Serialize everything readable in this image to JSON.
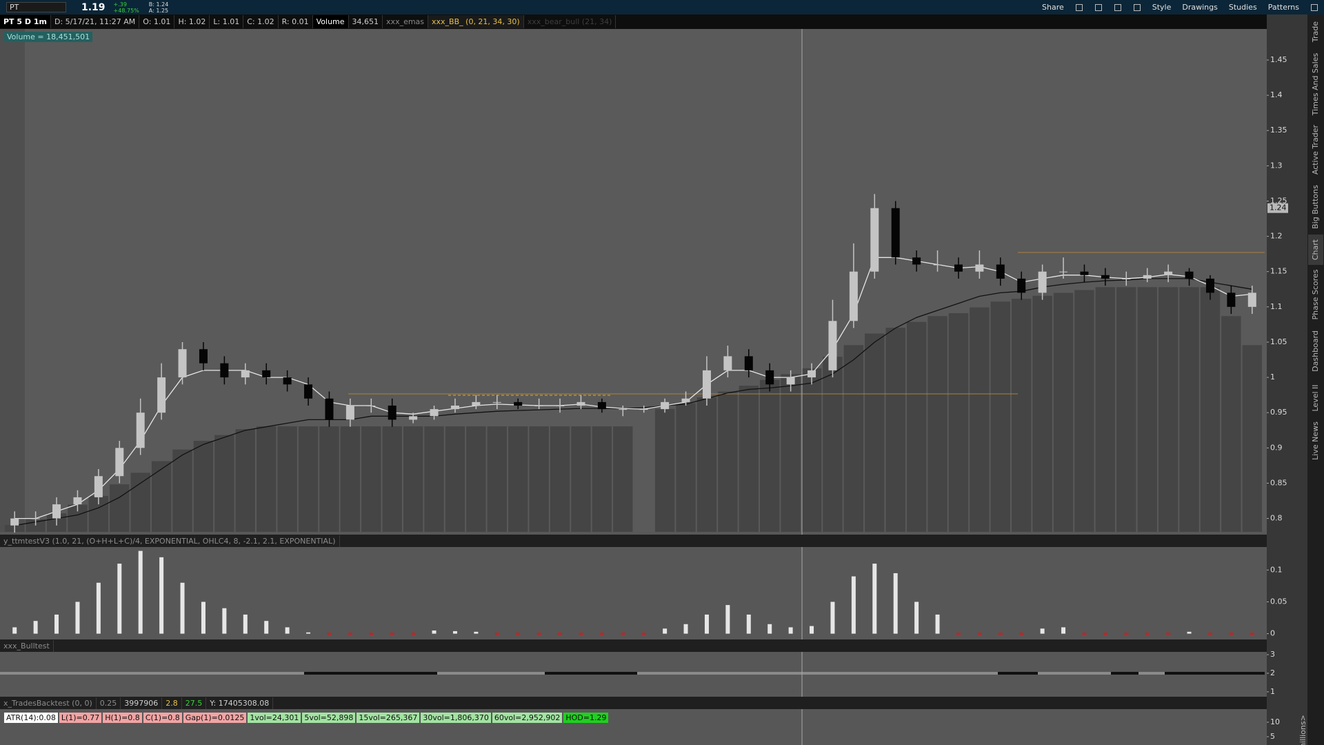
{
  "toolbar": {
    "symbol": "PT",
    "last": "1.19",
    "change": "+.39",
    "change_pct": "+48.75%",
    "bid": "B: 1.24",
    "ask": "A: 1.25",
    "buttons": [
      "Share",
      "Style",
      "Drawings",
      "Studies",
      "Patterns"
    ]
  },
  "header": {
    "chart_label": "PT 5 D 1m",
    "fields": [
      "D: 5/17/21, 11:27 AM",
      "O: 1.01",
      "H: 1.02",
      "L: 1.01",
      "C: 1.02",
      "R: 0.01"
    ],
    "volume_name": "Volume",
    "volume_value": "34,651",
    "studies": [
      "xxx_emas",
      "xxx_BB_ (0, 21, 34, 30)",
      "xxx_bear_bull (21, 34)"
    ],
    "volume_bubble": "Volume = 18,451,501"
  },
  "side_tabs": [
    "Trade",
    "Times And Sales",
    "Active Trader",
    "Big Buttons",
    "Chart",
    "Phase Scores",
    "Dashboard",
    "Level II",
    "Live News"
  ],
  "chart_data": {
    "type": "candlestick",
    "open": [
      0.79,
      0.8,
      0.8,
      0.82,
      0.83,
      0.86,
      0.9,
      0.95,
      1.0,
      1.04,
      1.02,
      1.0,
      1.01,
      1.0,
      0.99,
      0.97,
      0.94,
      0.96,
      0.96,
      0.94,
      0.945,
      0.955,
      0.96,
      0.965,
      0.965,
      0.96,
      0.96,
      0.96,
      0.965,
      0.955,
      0.955,
      0.955,
      0.965,
      0.97,
      1.01,
      1.03,
      1.01,
      0.99,
      1.0,
      1.01,
      1.08,
      1.15,
      1.24,
      1.17,
      1.16,
      1.16,
      1.15,
      1.16,
      1.14,
      1.12,
      1.15,
      1.15,
      1.145,
      1.14,
      1.14,
      1.145,
      1.15,
      1.14,
      1.12,
      1.1
    ],
    "high": [
      0.81,
      0.81,
      0.83,
      0.84,
      0.87,
      0.91,
      0.97,
      1.02,
      1.05,
      1.05,
      1.03,
      1.02,
      1.02,
      1.01,
      1.0,
      0.98,
      0.97,
      0.97,
      0.97,
      0.95,
      0.96,
      0.97,
      0.975,
      0.975,
      0.97,
      0.97,
      0.97,
      0.975,
      0.97,
      0.96,
      0.96,
      0.97,
      0.98,
      1.03,
      1.045,
      1.04,
      1.02,
      1.01,
      1.02,
      1.11,
      1.19,
      1.26,
      1.25,
      1.18,
      1.18,
      1.17,
      1.18,
      1.17,
      1.15,
      1.16,
      1.17,
      1.16,
      1.155,
      1.15,
      1.155,
      1.16,
      1.155,
      1.145,
      1.13,
      1.13
    ],
    "low": [
      0.78,
      0.79,
      0.79,
      0.81,
      0.82,
      0.85,
      0.89,
      0.94,
      0.99,
      1.01,
      0.99,
      0.99,
      0.99,
      0.98,
      0.96,
      0.93,
      0.93,
      0.95,
      0.93,
      0.935,
      0.94,
      0.95,
      0.955,
      0.955,
      0.955,
      0.955,
      0.95,
      0.955,
      0.95,
      0.945,
      0.95,
      0.95,
      0.96,
      0.96,
      1.0,
      1.0,
      0.98,
      0.98,
      0.99,
      1.0,
      1.07,
      1.14,
      1.16,
      1.15,
      1.15,
      1.14,
      1.14,
      1.13,
      1.11,
      1.11,
      1.14,
      1.135,
      1.13,
      1.13,
      1.135,
      1.135,
      1.13,
      1.11,
      1.09,
      1.09
    ],
    "close": [
      0.8,
      0.8,
      0.82,
      0.83,
      0.86,
      0.9,
      0.95,
      1.0,
      1.04,
      1.02,
      1.0,
      1.01,
      1.0,
      0.99,
      0.97,
      0.94,
      0.96,
      0.96,
      0.94,
      0.945,
      0.955,
      0.96,
      0.965,
      0.965,
      0.96,
      0.96,
      0.96,
      0.965,
      0.955,
      0.955,
      0.955,
      0.965,
      0.97,
      1.01,
      1.03,
      1.01,
      0.99,
      1.0,
      1.01,
      1.08,
      1.15,
      1.24,
      1.17,
      1.16,
      1.16,
      1.15,
      1.16,
      1.14,
      1.12,
      1.15,
      1.15,
      1.145,
      1.14,
      1.14,
      1.145,
      1.15,
      1.14,
      1.12,
      1.1,
      1.12
    ],
    "ema_fast": [
      0.8,
      0.8,
      0.81,
      0.82,
      0.84,
      0.87,
      0.91,
      0.96,
      1.0,
      1.01,
      1.01,
      1.01,
      1.0,
      1.0,
      0.99,
      0.965,
      0.96,
      0.96,
      0.95,
      0.948,
      0.952,
      0.956,
      0.96,
      0.962,
      0.961,
      0.96,
      0.96,
      0.962,
      0.958,
      0.956,
      0.955,
      0.96,
      0.965,
      0.99,
      1.01,
      1.01,
      1.0,
      1.0,
      1.005,
      1.04,
      1.09,
      1.17,
      1.17,
      1.165,
      1.16,
      1.155,
      1.157,
      1.15,
      1.135,
      1.14,
      1.145,
      1.145,
      1.142,
      1.14,
      1.142,
      1.146,
      1.143,
      1.13,
      1.115,
      1.118
    ],
    "ema_slow": [
      0.79,
      0.795,
      0.8,
      0.805,
      0.815,
      0.83,
      0.85,
      0.87,
      0.89,
      0.905,
      0.915,
      0.925,
      0.93,
      0.935,
      0.94,
      0.94,
      0.94,
      0.945,
      0.945,
      0.945,
      0.945,
      0.948,
      0.95,
      0.952,
      0.953,
      0.954,
      0.955,
      0.956,
      0.956,
      0.956,
      0.957,
      0.96,
      0.962,
      0.97,
      0.978,
      0.983,
      0.985,
      0.988,
      0.992,
      1.005,
      1.025,
      1.05,
      1.07,
      1.085,
      1.095,
      1.105,
      1.115,
      1.12,
      1.122,
      1.128,
      1.132,
      1.135,
      1.137,
      1.138,
      1.14,
      1.14,
      1.14,
      1.135,
      1.13,
      1.125
    ],
    "volume": [
      78,
      80,
      82,
      85,
      88,
      92,
      96,
      100,
      104,
      107,
      109,
      111,
      112,
      112,
      112,
      112,
      112,
      112,
      112,
      112,
      112,
      112,
      112,
      112,
      112,
      112,
      112,
      112,
      112,
      112,
      null,
      118,
      120,
      122,
      124,
      126,
      128,
      130,
      132,
      136,
      140,
      144,
      146,
      148,
      150,
      151,
      153,
      155,
      156,
      157,
      158,
      159,
      160,
      160,
      160,
      160,
      160,
      160,
      150,
      140
    ],
    "up_color": "#c4c4c4",
    "down_color": "#050505",
    "ema_fast_color": "#e6e6e6",
    "ema_slow_color": "#111111",
    "volume_color": "#454545",
    "ylim": [
      0.781,
      1.494
    ],
    "yticks": [
      0.8,
      0.85,
      0.9,
      0.95,
      1,
      1.05,
      1.1,
      1.15,
      1.2,
      1.25,
      1.3,
      1.35,
      1.4,
      1.45
    ],
    "last_price": 1.24,
    "volume_ylim": [
      0,
      249
    ],
    "volume_yticks": [
      10,
      5
    ],
    "volume_label": "millions>"
  },
  "studies": [
    {
      "type": "bar",
      "title": "y_ttmtestV3 (1.0, 21, (O+H+L+C)/4, EXPONENTIAL, OHLC4, 8, -2.1, 2.1, EXPONENTIAL)",
      "values": [
        0.01,
        0.02,
        0.03,
        0.05,
        0.08,
        0.11,
        0.13,
        0.12,
        0.08,
        0.05,
        0.04,
        0.03,
        0.02,
        0.01,
        0.002,
        0,
        0,
        0,
        0,
        0,
        0.005,
        0.004,
        0.003,
        0,
        0,
        0,
        0,
        0,
        0,
        0,
        0,
        0.008,
        0.015,
        0.03,
        0.045,
        0.03,
        0.015,
        0.01,
        0.012,
        0.05,
        0.09,
        0.11,
        0.095,
        0.05,
        0.03,
        0,
        0,
        0,
        0,
        0.008,
        0.01,
        0,
        0,
        0,
        0,
        0,
        0.003,
        0,
        0,
        0
      ],
      "color": "#e6e6e6",
      "zero_color": "#cc2020",
      "ylim": [
        -0.008,
        0.135
      ],
      "yticks": [
        0,
        0.05,
        0.1
      ]
    },
    {
      "title": "xxx_Bulltest",
      "ylim": [
        0.96,
        3.15
      ],
      "yticks": [
        1,
        2,
        3
      ]
    },
    {
      "title": "x_TradesBacktest (0, 0)",
      "fields": [
        "0.25",
        "3997906",
        "2.8",
        "27.5",
        "Y: 17405308.08"
      ],
      "boxes": [
        {
          "text": "ATR(14):0.08",
          "color": "#ffffff"
        },
        {
          "text": "L(1)=0.77",
          "color": "#f2a4a4"
        },
        {
          "text": "H(1)=0.8",
          "color": "#f2a4a4"
        },
        {
          "text": "C(1)=0.8",
          "color": "#f2a4a4"
        },
        {
          "text": "Gap(1)=0.0125",
          "color": "#f2a4a4"
        },
        {
          "text": "1vol=24,301",
          "color": "#a2e3a2"
        },
        {
          "text": "5vol=52,898",
          "color": "#a2e3a2"
        },
        {
          "text": "15vol=265,367",
          "color": "#a2e3a2"
        },
        {
          "text": "30vol=1,806,370",
          "color": "#a2e3a2"
        },
        {
          "text": "60vol=2,952,902",
          "color": "#a2e3a2"
        },
        {
          "text": "HOD=1.29",
          "color": "#1fd01f"
        }
      ]
    }
  ]
}
